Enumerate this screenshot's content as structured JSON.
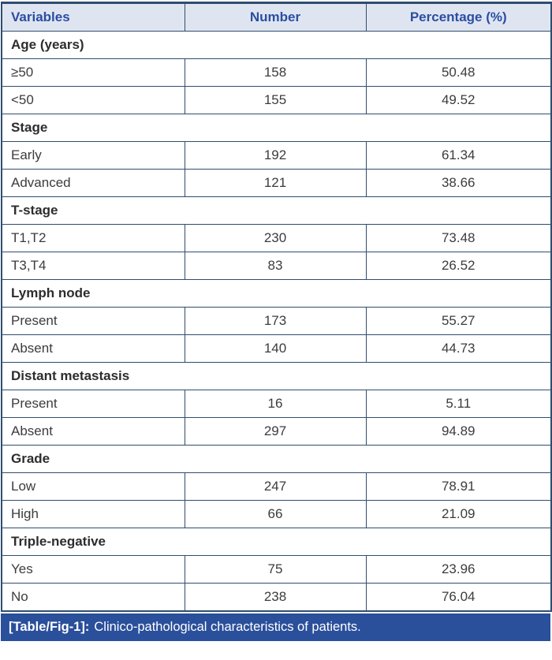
{
  "colors": {
    "header_bg": "#dfe5f0",
    "header_text": "#2b4da3",
    "grid_border": "#2f4d6e",
    "body_text": "#3c3c3c",
    "section_text": "#2d2d2d",
    "caption_bg": "#2a4f9b",
    "caption_text": "#ffffff"
  },
  "table": {
    "headers": [
      "Variables",
      "Number",
      "Percentage (%)"
    ],
    "sections": [
      {
        "label": "Age (years)",
        "rows": [
          [
            "≥50",
            "158",
            "50.48"
          ],
          [
            "<50",
            "155",
            "49.52"
          ]
        ]
      },
      {
        "label": "Stage",
        "rows": [
          [
            "Early",
            "192",
            "61.34"
          ],
          [
            "Advanced",
            "121",
            "38.66"
          ]
        ]
      },
      {
        "label": "T-stage",
        "rows": [
          [
            "T1,T2",
            "230",
            "73.48"
          ],
          [
            "T3,T4",
            "83",
            "26.52"
          ]
        ]
      },
      {
        "label": "Lymph node",
        "rows": [
          [
            "Present",
            "173",
            "55.27"
          ],
          [
            "Absent",
            "140",
            "44.73"
          ]
        ]
      },
      {
        "label": "Distant metastasis",
        "rows": [
          [
            "Present",
            "16",
            "5.11"
          ],
          [
            "Absent",
            "297",
            "94.89"
          ]
        ]
      },
      {
        "label": "Grade",
        "rows": [
          [
            "Low",
            "247",
            "78.91"
          ],
          [
            "High",
            "66",
            "21.09"
          ]
        ]
      },
      {
        "label": "Triple-negative",
        "rows": [
          [
            "Yes",
            "75",
            "23.96"
          ],
          [
            "No",
            "238",
            "76.04"
          ]
        ]
      }
    ],
    "caption": {
      "tag": "[Table/Fig-1]:",
      "text": "Clinico-pathological characteristics of patients."
    }
  }
}
